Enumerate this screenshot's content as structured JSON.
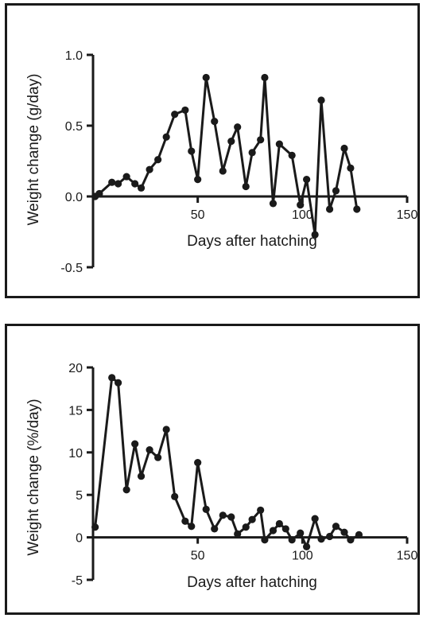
{
  "chart_data": [
    {
      "type": "line",
      "xlabel": "Days after hatching",
      "ylabel": "Weight change (g/day)",
      "xlim": [
        0,
        150
      ],
      "ylim": [
        -0.5,
        1.0
      ],
      "x_ticks": [
        50,
        100,
        150
      ],
      "y_ticks": [
        -0.5,
        0.0,
        0.5,
        1.0
      ],
      "x_tick_labels": [
        "50",
        "100",
        "150"
      ],
      "y_tick_labels": [
        "-0.5",
        "0.0",
        "0.5",
        "1.0"
      ],
      "grid": false,
      "legend": "none",
      "colors": {
        "line": "#1a1a1a",
        "marker": "#1a1a1a"
      },
      "series": [
        {
          "x": [
            1,
            3,
            9,
            12,
            16,
            20,
            23,
            27,
            31,
            35,
            39,
            44,
            47,
            50,
            54,
            58,
            62,
            66,
            69,
            73,
            76,
            80,
            82,
            86,
            89,
            95,
            99,
            102,
            106,
            109,
            113,
            116,
            120,
            123,
            126
          ],
          "y": [
            0.0,
            0.02,
            0.1,
            0.09,
            0.14,
            0.09,
            0.06,
            0.19,
            0.26,
            0.42,
            0.58,
            0.61,
            0.32,
            0.12,
            0.84,
            0.53,
            0.18,
            0.39,
            0.49,
            0.07,
            0.31,
            0.4,
            0.84,
            -0.05,
            0.37,
            0.29,
            -0.06,
            0.12,
            -0.27,
            0.68,
            -0.09,
            0.04,
            0.34,
            0.2,
            -0.09
          ]
        }
      ]
    },
    {
      "type": "line",
      "xlabel": "Days after hatching",
      "ylabel": "Weight change (%/day)",
      "xlim": [
        0,
        150
      ],
      "ylim": [
        -5,
        20
      ],
      "x_ticks": [
        50,
        100,
        150
      ],
      "y_ticks": [
        -5,
        0,
        5,
        10,
        15,
        20
      ],
      "x_tick_labels": [
        "50",
        "100",
        "150"
      ],
      "y_tick_labels": [
        "-5",
        "0",
        "5",
        "10",
        "15",
        "20"
      ],
      "grid": false,
      "legend": "none",
      "colors": {
        "line": "#1a1a1a",
        "marker": "#1a1a1a"
      },
      "series": [
        {
          "x": [
            1,
            9,
            12,
            16,
            20,
            23,
            27,
            31,
            35,
            39,
            44,
            47,
            50,
            54,
            58,
            62,
            66,
            69,
            73,
            76,
            80,
            82,
            86,
            89,
            92,
            95,
            99,
            102,
            106,
            109,
            113,
            116,
            120,
            123,
            127
          ],
          "y": [
            1.2,
            18.8,
            18.2,
            5.6,
            11.0,
            7.2,
            10.3,
            9.4,
            12.7,
            4.8,
            1.9,
            1.3,
            8.8,
            3.3,
            1.0,
            2.6,
            2.4,
            0.4,
            1.2,
            2.1,
            3.2,
            -0.3,
            0.8,
            1.6,
            1.0,
            -0.3,
            0.5,
            -1.1,
            2.2,
            -0.2,
            0.1,
            1.3,
            0.6,
            -0.3,
            0.3
          ]
        }
      ]
    }
  ]
}
